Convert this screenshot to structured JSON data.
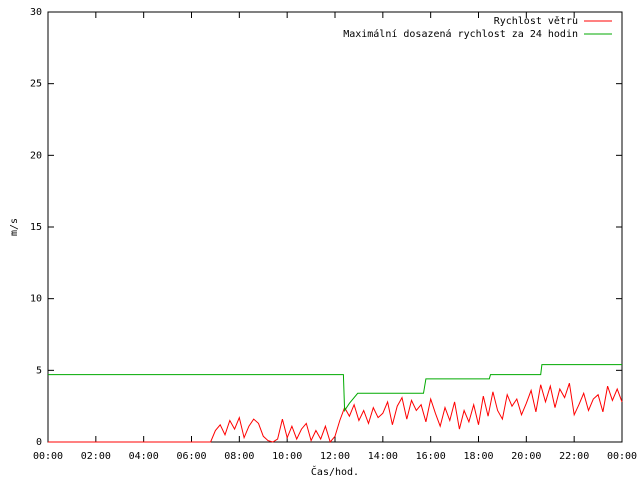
{
  "chart_data": {
    "type": "line",
    "y_label": "m/s",
    "x_label": "Čas/hod.",
    "xlim": [
      0,
      24
    ],
    "ylim": [
      0,
      30
    ],
    "xticks": [
      {
        "value": 0,
        "label": "00:00"
      },
      {
        "value": 2,
        "label": "02:00"
      },
      {
        "value": 4,
        "label": "04:00"
      },
      {
        "value": 6,
        "label": "06:00"
      },
      {
        "value": 8,
        "label": "08:00"
      },
      {
        "value": 10,
        "label": "10:00"
      },
      {
        "value": 12,
        "label": "12:00"
      },
      {
        "value": 14,
        "label": "14:00"
      },
      {
        "value": 16,
        "label": "16:00"
      },
      {
        "value": 18,
        "label": "18:00"
      },
      {
        "value": 20,
        "label": "20:00"
      },
      {
        "value": 22,
        "label": "22:00"
      },
      {
        "value": 24,
        "label": "00:00"
      }
    ],
    "yticks": [
      0,
      5,
      10,
      15,
      20,
      25,
      30
    ],
    "legend": "top-right",
    "series": [
      {
        "name": "Rychlost větru",
        "color": "#ff0000",
        "x": [
          0,
          6.8,
          7.0,
          7.2,
          7.4,
          7.6,
          7.8,
          8.0,
          8.2,
          8.4,
          8.6,
          8.8,
          9.0,
          9.2,
          9.4,
          9.6,
          9.8,
          10.0,
          10.2,
          10.4,
          10.6,
          10.8,
          11.0,
          11.2,
          11.4,
          11.6,
          11.8,
          12.0,
          12.2,
          12.4,
          12.6,
          12.8,
          13.0,
          13.2,
          13.4,
          13.6,
          13.8,
          14.0,
          14.2,
          14.4,
          14.6,
          14.8,
          15.0,
          15.2,
          15.4,
          15.6,
          15.8,
          16.0,
          16.2,
          16.4,
          16.6,
          16.8,
          17.0,
          17.2,
          17.4,
          17.6,
          17.8,
          18.0,
          18.2,
          18.4,
          18.6,
          18.8,
          19.0,
          19.2,
          19.4,
          19.6,
          19.8,
          20.0,
          20.2,
          20.4,
          20.6,
          20.8,
          21.0,
          21.2,
          21.4,
          21.6,
          21.8,
          22.0,
          22.2,
          22.4,
          22.6,
          22.8,
          23.0,
          23.2,
          23.4,
          23.6,
          23.8,
          24.0
        ],
        "values": [
          0,
          0,
          0.8,
          1.2,
          0.5,
          1.5,
          0.9,
          1.7,
          0.3,
          1.1,
          1.6,
          1.3,
          0.4,
          0.1,
          0,
          0.2,
          1.6,
          0.3,
          1.1,
          0.2,
          0.9,
          1.3,
          0.1,
          0.8,
          0.2,
          1.1,
          0,
          0.4,
          1.5,
          2.4,
          1.8,
          2.6,
          1.5,
          2.2,
          1.3,
          2.4,
          1.7,
          2.0,
          2.8,
          1.2,
          2.5,
          3.1,
          1.6,
          2.9,
          2.2,
          2.6,
          1.4,
          3.0,
          2.0,
          1.1,
          2.4,
          1.5,
          2.8,
          0.9,
          2.2,
          1.4,
          2.6,
          1.2,
          3.2,
          1.8,
          3.5,
          2.2,
          1.6,
          3.3,
          2.5,
          3.0,
          1.9,
          2.7,
          3.6,
          2.1,
          4.0,
          2.8,
          3.9,
          2.4,
          3.7,
          3.1,
          4.1,
          1.9,
          2.6,
          3.4,
          2.2,
          3.0,
          3.3,
          2.1,
          3.9,
          2.9,
          3.7,
          2.8
        ]
      },
      {
        "name": "Maximální dosazená rychlost za 24 hodin",
        "color": "#00aa00",
        "x": [
          0,
          12.35,
          12.4,
          12.6,
          12.95,
          15.7,
          15.8,
          18.45,
          18.5,
          20.6,
          20.65,
          24
        ],
        "values": [
          4.7,
          4.7,
          2.2,
          2.7,
          3.4,
          3.4,
          4.4,
          4.4,
          4.7,
          4.7,
          5.4,
          5.4
        ]
      }
    ]
  }
}
